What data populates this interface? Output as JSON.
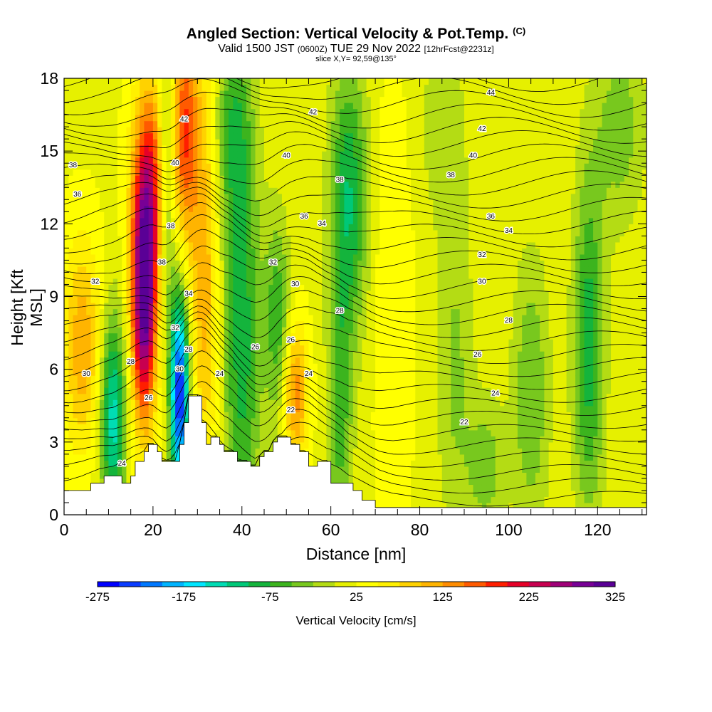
{
  "title": {
    "line1": "Angled Section: Vertical Velocity & Pot.Temp.",
    "line1_unit": "(C)",
    "line2_a": "Valid 1500 JST",
    "line2_b": "(0600Z)",
    "line2_c": "TUE 29 Nov 2022",
    "line2_d": "[12hrFcst@2231z]",
    "line3": "slice X,Y= 92,59@135°"
  },
  "chart_data": {
    "type": "heatmap",
    "xlabel": "Distance [nm]",
    "ylabel": "Height [Kft MSL]",
    "xlim": [
      0,
      131
    ],
    "ylim": [
      0,
      18
    ],
    "xticks": [
      0,
      20,
      40,
      60,
      80,
      100,
      120
    ],
    "yticks": [
      0,
      3,
      6,
      9,
      12,
      15,
      18
    ],
    "colorbar": {
      "label": "Vertical Velocity [cm/s]",
      "ticks": [
        -275,
        -175,
        -75,
        25,
        125,
        225,
        325
      ],
      "range": [
        -275,
        325
      ],
      "colors": [
        "#0000ff",
        "#0a3cff",
        "#0078ff",
        "#00b4ff",
        "#00e6ff",
        "#00dcb4",
        "#00c878",
        "#14b43c",
        "#3cb41e",
        "#78c81e",
        "#b4dc14",
        "#e6f000",
        "#ffff00",
        "#fff000",
        "#ffd200",
        "#ffb400",
        "#ff8c00",
        "#ff5a00",
        "#ff1e00",
        "#e60028",
        "#c80050",
        "#a00078",
        "#780096",
        "#5a0096"
      ]
    },
    "terrain_profile": [
      [
        0,
        1
      ],
      [
        6,
        1
      ],
      [
        6,
        1.3
      ],
      [
        9,
        1.3
      ],
      [
        9,
        1.6
      ],
      [
        13,
        1.6
      ],
      [
        13,
        1.3
      ],
      [
        15,
        1.3
      ],
      [
        15,
        1.6
      ],
      [
        16,
        1.6
      ],
      [
        16,
        2.2
      ],
      [
        18,
        2.2
      ],
      [
        18,
        2.6
      ],
      [
        19,
        2.6
      ],
      [
        19,
        2.9
      ],
      [
        21,
        2.9
      ],
      [
        21,
        2.6
      ],
      [
        22,
        2.6
      ],
      [
        22,
        2.2
      ],
      [
        26,
        2.2
      ],
      [
        26,
        2.9
      ],
      [
        27,
        2.9
      ],
      [
        27,
        3.8
      ],
      [
        28,
        3.8
      ],
      [
        28,
        4.9
      ],
      [
        31,
        4.9
      ],
      [
        31,
        3.8
      ],
      [
        32,
        3.8
      ],
      [
        32,
        2.9
      ],
      [
        33,
        2.9
      ],
      [
        33,
        3.2
      ],
      [
        35,
        3.2
      ],
      [
        35,
        2.9
      ],
      [
        36,
        2.9
      ],
      [
        36,
        2.6
      ],
      [
        39,
        2.6
      ],
      [
        39,
        2.2
      ],
      [
        42,
        2.2
      ],
      [
        42,
        2.0
      ],
      [
        44,
        2.0
      ],
      [
        44,
        2.4
      ],
      [
        45,
        2.4
      ],
      [
        45,
        2.6
      ],
      [
        47,
        2.6
      ],
      [
        47,
        3.0
      ],
      [
        48,
        3.0
      ],
      [
        48,
        3.2
      ],
      [
        51,
        3.2
      ],
      [
        51,
        2.9
      ],
      [
        53,
        2.9
      ],
      [
        53,
        2.6
      ],
      [
        55,
        2.6
      ],
      [
        55,
        2.0
      ],
      [
        57,
        2.0
      ],
      [
        57,
        2.2
      ],
      [
        60,
        2.2
      ],
      [
        60,
        1.3
      ],
      [
        65,
        1.3
      ],
      [
        65,
        1.0
      ],
      [
        67,
        1.0
      ],
      [
        67,
        0.6
      ],
      [
        70,
        0.6
      ],
      [
        70,
        0.3
      ],
      [
        131,
        0.3
      ]
    ],
    "theta_contour_labels": [
      {
        "text": "24",
        "x": 13,
        "y": 2.1
      },
      {
        "text": "26",
        "x": 19,
        "y": 4.8
      },
      {
        "text": "28",
        "x": 15,
        "y": 6.3
      },
      {
        "text": "30",
        "x": 5,
        "y": 5.8
      },
      {
        "text": "32",
        "x": 7,
        "y": 9.6
      },
      {
        "text": "36",
        "x": 3,
        "y": 13.2
      },
      {
        "text": "38",
        "x": 2,
        "y": 14.4
      },
      {
        "text": "38",
        "x": 24,
        "y": 11.9
      },
      {
        "text": "38",
        "x": 22,
        "y": 10.4
      },
      {
        "text": "40",
        "x": 25,
        "y": 14.5
      },
      {
        "text": "42",
        "x": 27,
        "y": 16.3
      },
      {
        "text": "32",
        "x": 25,
        "y": 7.7
      },
      {
        "text": "34",
        "x": 28,
        "y": 9.1
      },
      {
        "text": "28",
        "x": 28,
        "y": 6.8
      },
      {
        "text": "30",
        "x": 26,
        "y": 6.0
      },
      {
        "text": "24",
        "x": 35,
        "y": 5.8
      },
      {
        "text": "26",
        "x": 43,
        "y": 6.9
      },
      {
        "text": "26",
        "x": 51,
        "y": 7.2
      },
      {
        "text": "24",
        "x": 55,
        "y": 5.8
      },
      {
        "text": "22",
        "x": 51,
        "y": 4.3
      },
      {
        "text": "28",
        "x": 62,
        "y": 8.4
      },
      {
        "text": "30",
        "x": 52,
        "y": 9.5
      },
      {
        "text": "32",
        "x": 47,
        "y": 10.4
      },
      {
        "text": "34",
        "x": 58,
        "y": 12.0
      },
      {
        "text": "36",
        "x": 54,
        "y": 12.3
      },
      {
        "text": "38",
        "x": 62,
        "y": 13.8
      },
      {
        "text": "40",
        "x": 50,
        "y": 14.8
      },
      {
        "text": "42",
        "x": 56,
        "y": 16.6
      },
      {
        "text": "44",
        "x": 96,
        "y": 17.4
      },
      {
        "text": "42",
        "x": 94,
        "y": 15.9
      },
      {
        "text": "40",
        "x": 92,
        "y": 14.8
      },
      {
        "text": "38",
        "x": 87,
        "y": 14.0
      },
      {
        "text": "36",
        "x": 96,
        "y": 12.3
      },
      {
        "text": "34",
        "x": 100,
        "y": 11.7
      },
      {
        "text": "32",
        "x": 94,
        "y": 10.7
      },
      {
        "text": "30",
        "x": 94,
        "y": 9.6
      },
      {
        "text": "28",
        "x": 100,
        "y": 8.0
      },
      {
        "text": "26",
        "x": 93,
        "y": 6.6
      },
      {
        "text": "24",
        "x": 97,
        "y": 5.0
      },
      {
        "text": "22",
        "x": 90,
        "y": 3.8
      }
    ]
  }
}
